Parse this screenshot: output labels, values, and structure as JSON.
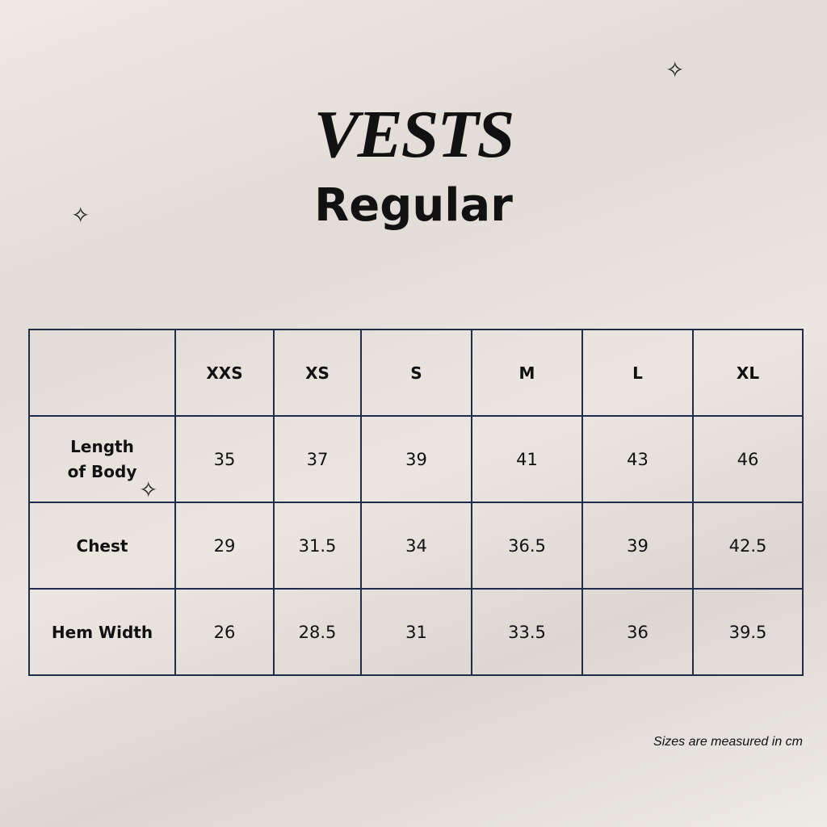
{
  "title": "VESTS",
  "subtitle": "Regular",
  "headers": [
    "",
    "XXS",
    "XS",
    "S",
    "M",
    "L",
    "XL"
  ],
  "rows": [
    {
      "label": "Length of Body",
      "values": [
        "35",
        "37",
        "39",
        "41",
        "43",
        "46"
      ]
    },
    {
      "label": "Chest",
      "values": [
        "29",
        "31.5",
        "34",
        "36.5",
        "39",
        "42.5"
      ]
    },
    {
      "label": "Hem Width",
      "values": [
        "26",
        "28.5",
        "31",
        "33.5",
        "36",
        "39.5"
      ]
    }
  ],
  "note": "Sizes are measured in cm",
  "border_color": "#1e2d4a"
}
